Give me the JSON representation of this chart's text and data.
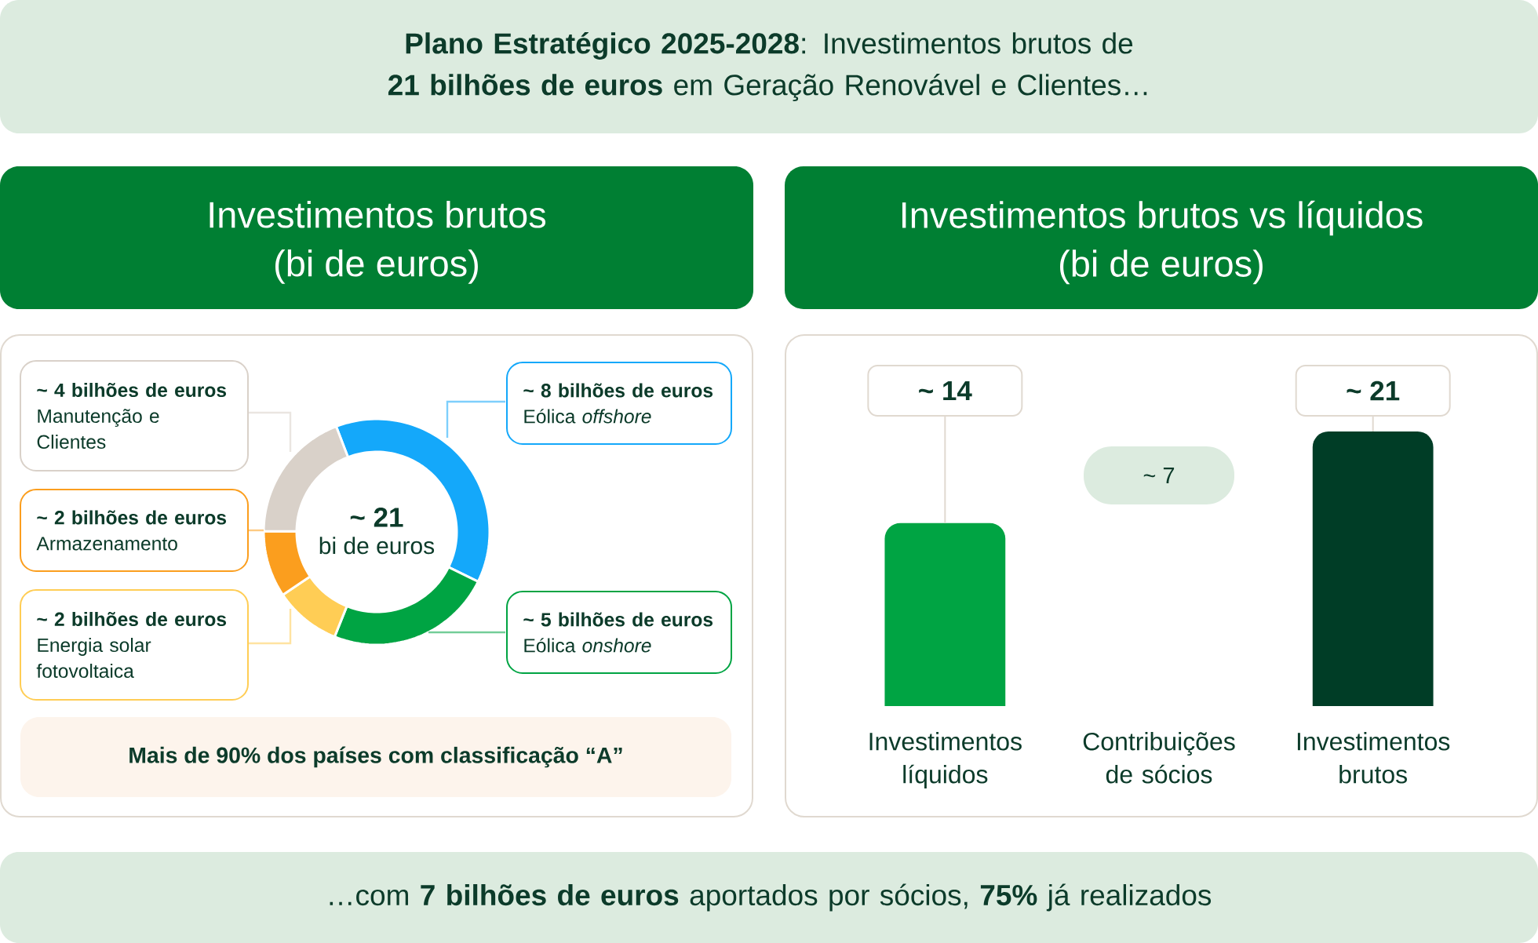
{
  "chart_data": [
    {
      "type": "other",
      "title": "**Plano Estratégico 2025-2028**: Investimentos brutos de **21 bilhões de euros** em Geração Renovável e Clientes…"
    },
    {
      "type": "donut",
      "title": "Investimentos brutos",
      "subtitle": "(bi de euros)",
      "categories": [
        "Eólica *offshore*",
        "Eólica *onshore*",
        "Energia solar fotovoltaica",
        "Armazenamento",
        "Manutenção e Clientes"
      ],
      "values": [
        8,
        5,
        2,
        2,
        4
      ],
      "colors": [
        "#14a8fa",
        "#00a443",
        "#ffcd55",
        "#fb9e1e",
        "#d9d1c9"
      ],
      "value_labels": [
        "~ 8 bilhões de euros",
        "~ 5 bilhões de euros",
        "~ 2 bilhões de euros",
        "~ 2 bilhões de euros",
        "~ 4 bilhões de euros"
      ],
      "annotations": [
        "~ 21",
        "bi de euros",
        "Mais de 90% dos países com classificação “A”"
      ]
    },
    {
      "type": "bar",
      "title": "Investimentos brutos vs líquidos",
      "subtitle": "(bi de euros)",
      "categories": [
        "Investimentos líquidos",
        "Contribuições de sócios",
        "Investimentos brutos"
      ],
      "values": [
        14,
        null,
        21
      ],
      "colors": [
        "#00a443",
        null,
        "#003d26"
      ],
      "value_labels": [
        "~ 14",
        null,
        "~ 21"
      ],
      "annotations": [
        "~ 7"
      ]
    },
    {
      "type": "other",
      "title": "…com **7 bilhões de euros** aportados por sócios, **75%** já realizados"
    }
  ]
}
